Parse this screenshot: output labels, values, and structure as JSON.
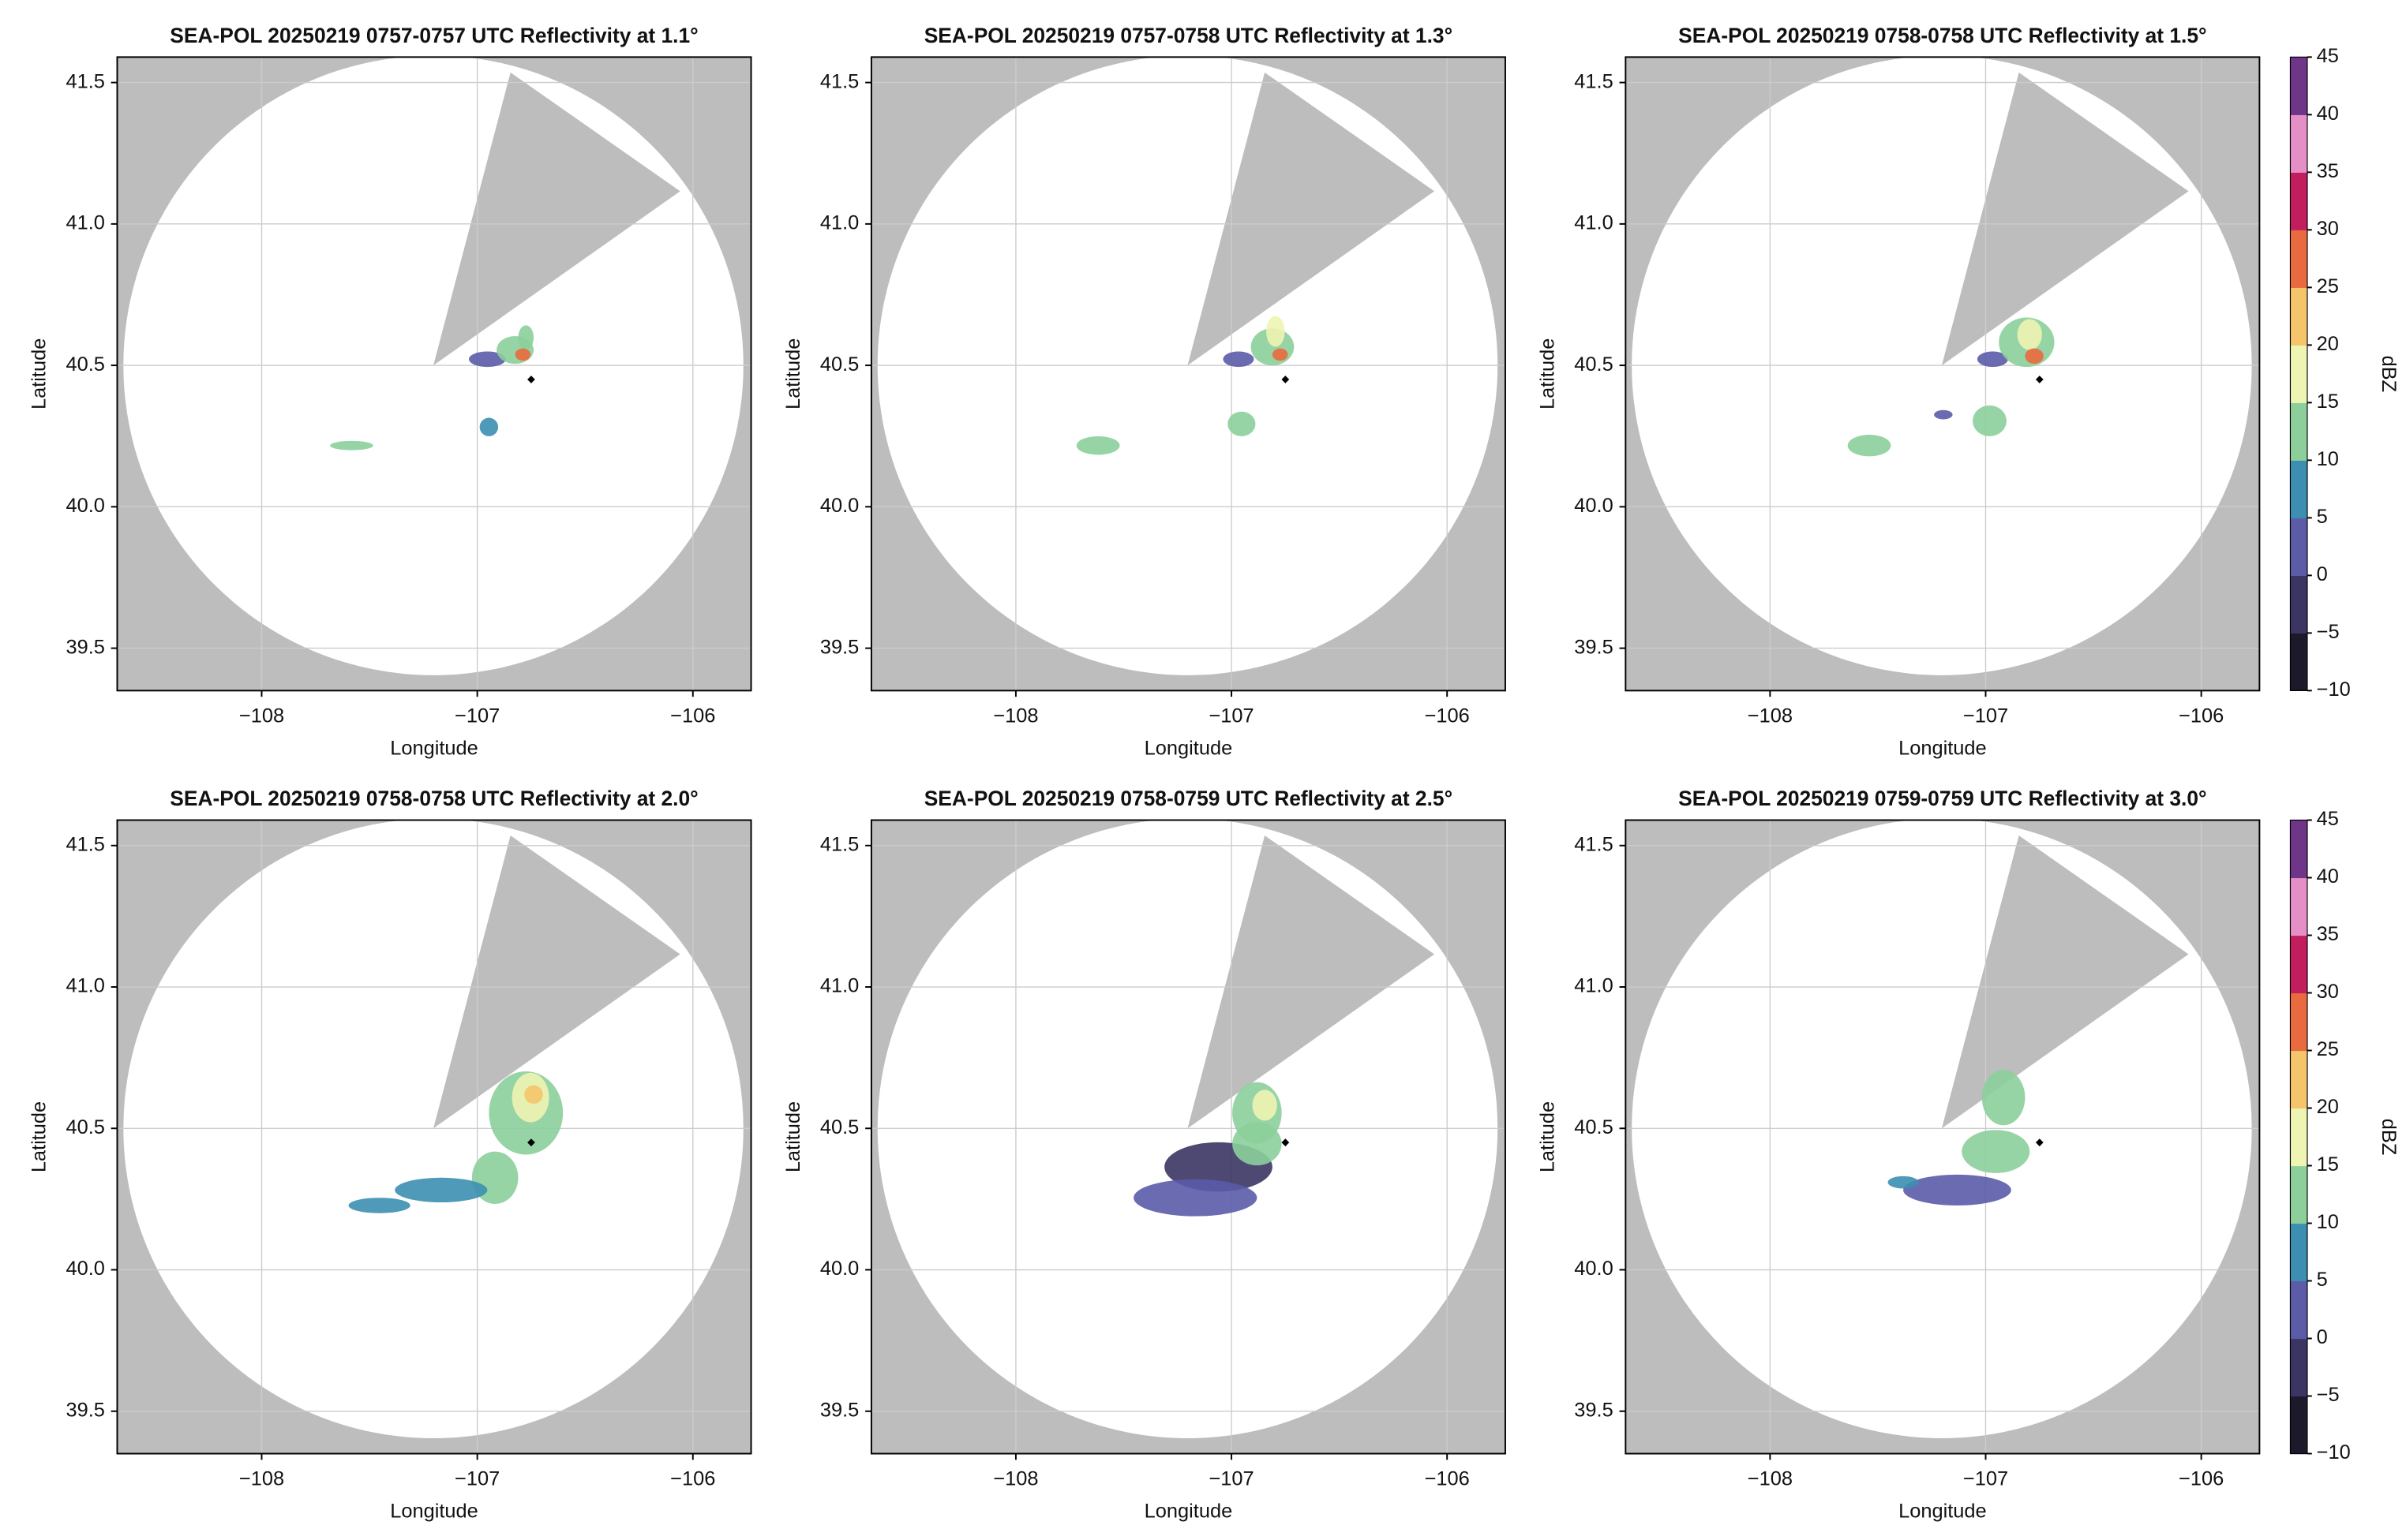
{
  "chart_data": [
    {
      "type": "radar",
      "title": "SEA-POL 20250219 0757-0757 UTC Reflectivity at 1.1°",
      "x_label": "Longitude",
      "y_label": "Latitude",
      "xlim": [
        -108.67,
        -105.73
      ],
      "ylim": [
        39.35,
        41.59
      ],
      "xticks": [
        {
          "value": -108,
          "label": "−108"
        },
        {
          "value": -107,
          "label": "−107"
        },
        {
          "value": -106,
          "label": "−106"
        }
      ],
      "yticks": [
        {
          "value": 39.5,
          "label": "39.5"
        },
        {
          "value": 40,
          "label": "40.0"
        },
        {
          "value": 40.5,
          "label": "40.5"
        },
        {
          "value": 41,
          "label": "41.0"
        },
        {
          "value": 41.5,
          "label": "41.5"
        }
      ],
      "grid": true,
      "site": [
        -106.75,
        40.45
      ]
    },
    {
      "type": "radar",
      "title": "SEA-POL 20250219 0757-0758 UTC Reflectivity at 1.3°",
      "x_label": "Longitude",
      "y_label": "Latitude",
      "xlim": [
        -108.67,
        -105.73
      ],
      "ylim": [
        39.35,
        41.59
      ],
      "xticks": [
        {
          "value": -108,
          "label": "−108"
        },
        {
          "value": -107,
          "label": "−107"
        },
        {
          "value": -106,
          "label": "−106"
        }
      ],
      "yticks": [
        {
          "value": 39.5,
          "label": "39.5"
        },
        {
          "value": 40,
          "label": "40.0"
        },
        {
          "value": 40.5,
          "label": "40.5"
        },
        {
          "value": 41,
          "label": "41.0"
        },
        {
          "value": 41.5,
          "label": "41.5"
        }
      ],
      "grid": true,
      "site": [
        -106.75,
        40.45
      ]
    },
    {
      "type": "radar",
      "title": "SEA-POL 20250219 0758-0758 UTC Reflectivity at 1.5°",
      "x_label": "Longitude",
      "y_label": "Latitude",
      "xlim": [
        -108.67,
        -105.73
      ],
      "ylim": [
        39.35,
        41.59
      ],
      "xticks": [
        {
          "value": -108,
          "label": "−108"
        },
        {
          "value": -107,
          "label": "−107"
        },
        {
          "value": -106,
          "label": "−106"
        }
      ],
      "yticks": [
        {
          "value": 39.5,
          "label": "39.5"
        },
        {
          "value": 40,
          "label": "40.0"
        },
        {
          "value": 40.5,
          "label": "40.5"
        },
        {
          "value": 41,
          "label": "41.0"
        },
        {
          "value": 41.5,
          "label": "41.5"
        }
      ],
      "grid": true,
      "site": [
        -106.75,
        40.45
      ],
      "colorbar": {
        "label": "dBZ",
        "clim": [
          -10,
          45
        ],
        "ticks": [
          {
            "value": -10,
            "label": "−10"
          },
          {
            "value": -5,
            "label": "−5"
          },
          0,
          5,
          10,
          15,
          20,
          25,
          30,
          35,
          40,
          45
        ],
        "colors": [
          "#1c1a2a",
          "#3b3563",
          "#5b5ba8",
          "#3c8fb1",
          "#8ccf9b",
          "#eef4b2",
          "#f6c46a",
          "#e96a3e",
          "#c21e5d",
          "#e58fc6",
          "#6f3588"
        ]
      }
    },
    {
      "type": "radar",
      "title": "SEA-POL 20250219 0758-0758 UTC Reflectivity at 2.0°",
      "x_label": "Longitude",
      "y_label": "Latitude",
      "xlim": [
        -108.67,
        -105.73
      ],
      "ylim": [
        39.35,
        41.59
      ],
      "xticks": [
        {
          "value": -108,
          "label": "−108"
        },
        {
          "value": -107,
          "label": "−107"
        },
        {
          "value": -106,
          "label": "−106"
        }
      ],
      "yticks": [
        {
          "value": 39.5,
          "label": "39.5"
        },
        {
          "value": 40,
          "label": "40.0"
        },
        {
          "value": 40.5,
          "label": "40.5"
        },
        {
          "value": 41,
          "label": "41.0"
        },
        {
          "value": 41.5,
          "label": "41.5"
        }
      ],
      "grid": true,
      "site": [
        -106.75,
        40.45
      ]
    },
    {
      "type": "radar",
      "title": "SEA-POL 20250219 0758-0759 UTC Reflectivity at 2.5°",
      "x_label": "Longitude",
      "y_label": "Latitude",
      "xlim": [
        -108.67,
        -105.73
      ],
      "ylim": [
        39.35,
        41.59
      ],
      "xticks": [
        {
          "value": -108,
          "label": "−108"
        },
        {
          "value": -107,
          "label": "−107"
        },
        {
          "value": -106,
          "label": "−106"
        }
      ],
      "yticks": [
        {
          "value": 39.5,
          "label": "39.5"
        },
        {
          "value": 40,
          "label": "40.0"
        },
        {
          "value": 40.5,
          "label": "40.5"
        },
        {
          "value": 41,
          "label": "41.0"
        },
        {
          "value": 41.5,
          "label": "41.5"
        }
      ],
      "grid": true,
      "site": [
        -106.75,
        40.45
      ]
    },
    {
      "type": "radar",
      "title": "SEA-POL 20250219 0759-0759 UTC Reflectivity at 3.0°",
      "x_label": "Longitude",
      "y_label": "Latitude",
      "xlim": [
        -108.67,
        -105.73
      ],
      "ylim": [
        39.35,
        41.59
      ],
      "xticks": [
        {
          "value": -108,
          "label": "−108"
        },
        {
          "value": -107,
          "label": "−107"
        },
        {
          "value": -106,
          "label": "−106"
        }
      ],
      "yticks": [
        {
          "value": 39.5,
          "label": "39.5"
        },
        {
          "value": 40,
          "label": "40.0"
        },
        {
          "value": 40.5,
          "label": "40.5"
        },
        {
          "value": 41,
          "label": "41.0"
        },
        {
          "value": 41.5,
          "label": "41.5"
        }
      ],
      "grid": true,
      "site": [
        -106.75,
        40.45
      ],
      "colorbar": {
        "label": "dBZ",
        "clim": [
          -10,
          45
        ],
        "ticks": [
          {
            "value": -10,
            "label": "−10"
          },
          {
            "value": -5,
            "label": "−5"
          },
          0,
          5,
          10,
          15,
          20,
          25,
          30,
          35,
          40,
          45
        ],
        "colors": [
          "#1c1a2a",
          "#3b3563",
          "#5b5ba8",
          "#3c8fb1",
          "#8ccf9b",
          "#eef4b2",
          "#f6c46a",
          "#e96a3e",
          "#c21e5d",
          "#e58fc6",
          "#6f3588"
        ]
      }
    }
  ]
}
